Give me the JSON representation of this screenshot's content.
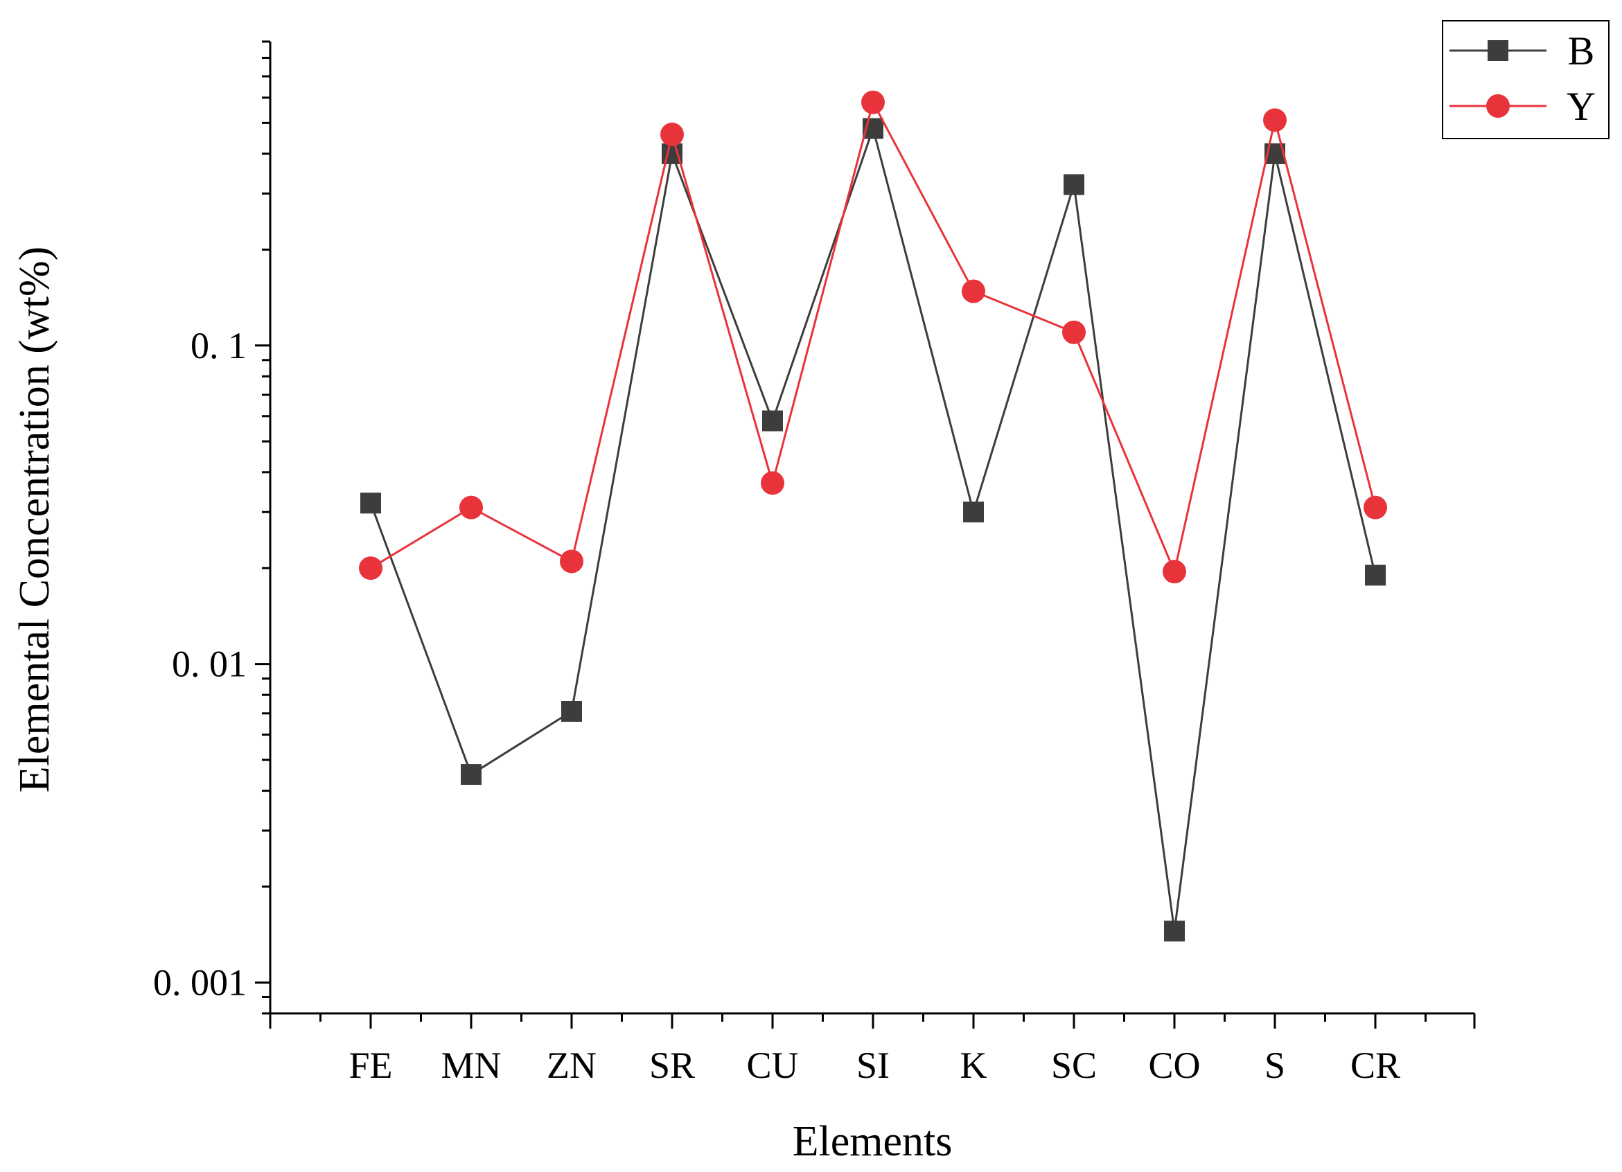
{
  "chart_data": {
    "type": "line",
    "title": "",
    "xlabel": "Elements",
    "ylabel": "Elemental Concentration (wt%)",
    "yscale": "log",
    "ylim": [
      0.0008,
      0.9
    ],
    "yticks": [
      {
        "value": 0.001,
        "label": "0. 001"
      },
      {
        "value": 0.01,
        "label": "0. 01"
      },
      {
        "value": 0.1,
        "label": "0. 1"
      }
    ],
    "categories": [
      "FE",
      "MN",
      "ZN",
      "SR",
      "CU",
      "SI",
      "K",
      "SC",
      "CO",
      "S",
      "CR"
    ],
    "series": [
      {
        "name": "B",
        "color": "#3d3d3d",
        "marker": "square",
        "values": [
          0.032,
          0.0045,
          0.0071,
          0.4,
          0.058,
          0.48,
          0.03,
          0.32,
          0.00145,
          0.4,
          0.019
        ]
      },
      {
        "name": "Y",
        "color": "#e8333a",
        "marker": "circle",
        "values": [
          0.02,
          0.031,
          0.021,
          0.46,
          0.037,
          0.58,
          0.148,
          0.11,
          0.0195,
          0.51,
          0.031
        ]
      }
    ],
    "legend_position": "top-right",
    "grid": false
  }
}
